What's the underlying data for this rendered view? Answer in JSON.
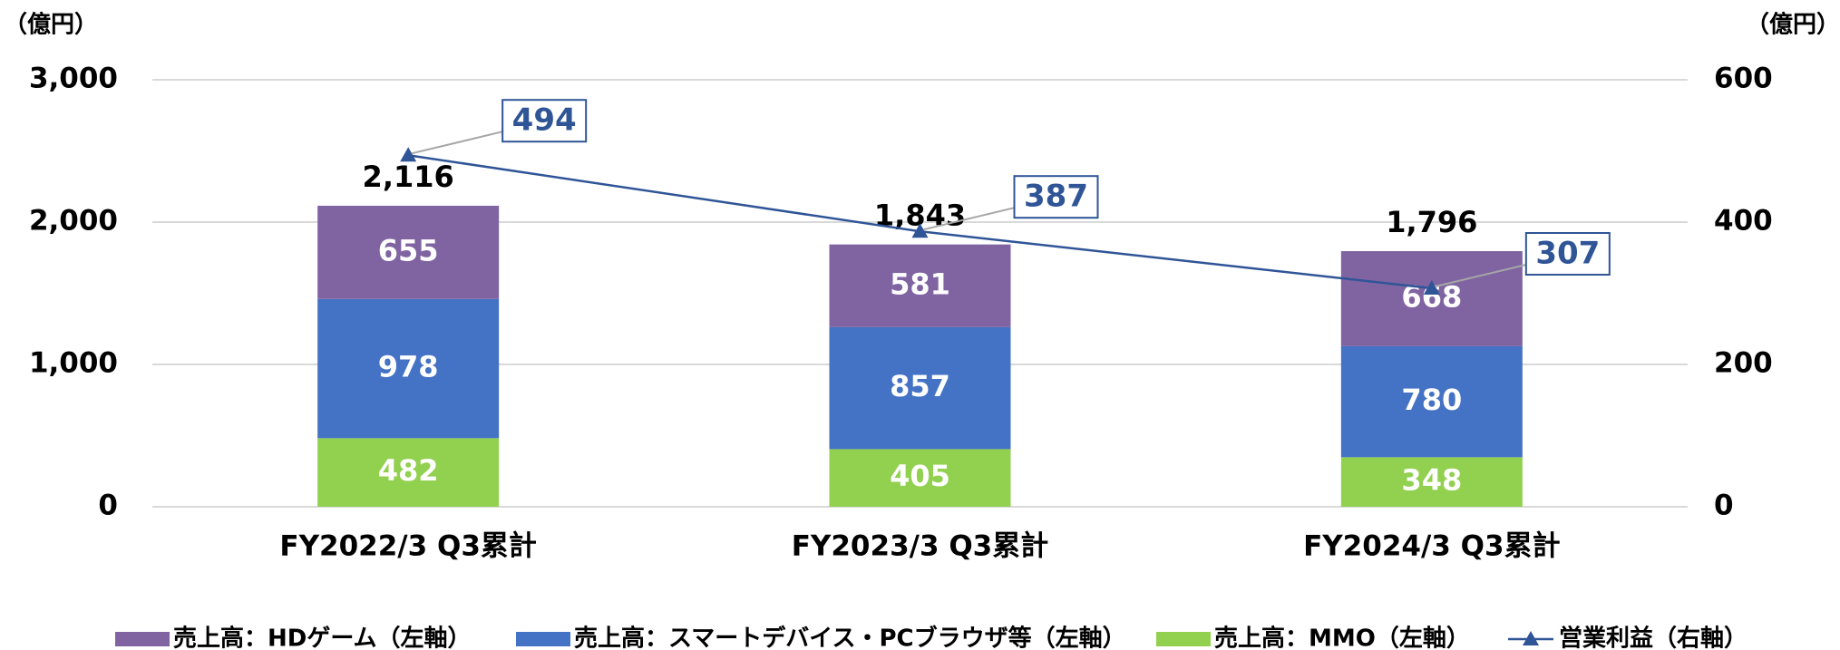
{
  "chart_data": {
    "type": "bar",
    "y_label": "（億円）",
    "y2_label": "（億円）",
    "categories": [
      "FY2022/3 Q3累計",
      "FY2023/3 Q3累計",
      "FY2024/3 Q3累計"
    ],
    "series": [
      {
        "name": "売上高：HDゲーム（左軸）",
        "color": "#8064a2",
        "values": [
          655,
          581,
          668
        ]
      },
      {
        "name": "売上高：スマートデバイス・PCブラウザ等（左軸）",
        "color": "#4472c4",
        "values": [
          978,
          857,
          780
        ]
      },
      {
        "name": "売上高：MMO（左軸）",
        "color": "#92d050",
        "values": [
          482,
          405,
          348
        ]
      },
      {
        "name": "営業利益（右軸）",
        "color": "#2f5597",
        "type": "line",
        "axis": "y2",
        "values": [
          494,
          387,
          307
        ]
      }
    ],
    "totals": {
      "values": [
        2116,
        1843,
        1796
      ],
      "value_labels": [
        "2,116",
        "1,843",
        "1,796"
      ]
    },
    "ylim": [
      0,
      3000
    ],
    "yticks": [
      0,
      {
        "value": 1000,
        "label": "1,000"
      },
      {
        "value": 2000,
        "label": "2,000"
      },
      {
        "value": 3000,
        "label": "3,000"
      }
    ],
    "y2lim": [
      0,
      600
    ],
    "y2ticks": [
      0,
      200,
      400,
      600
    ],
    "grid": true,
    "legend": "bottom"
  }
}
